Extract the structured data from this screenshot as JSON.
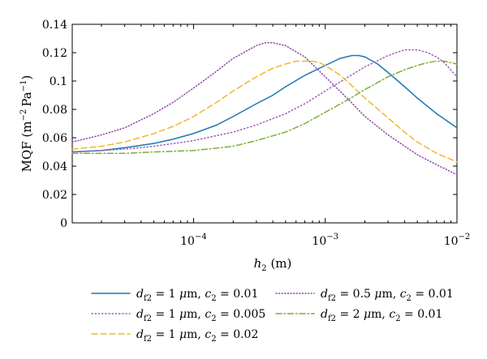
{
  "chart_data": {
    "type": "line",
    "title": "",
    "xlabel": "h2 (m)",
    "ylabel": "MQF (m−2 Pa−1)",
    "xscale": "log",
    "xlim": [
      1.2e-05,
      0.01
    ],
    "ylim": [
      0,
      0.14
    ],
    "grid": false,
    "legend_position": "bottom",
    "x_ticks": [
      {
        "value": 0.0001,
        "base": "10",
        "exp": "−4"
      },
      {
        "value": 0.001,
        "base": "10",
        "exp": "−3"
      },
      {
        "value": 0.01,
        "base": "10",
        "exp": "−2"
      }
    ],
    "y_ticks": [
      {
        "value": 0,
        "label": "0"
      },
      {
        "value": 0.02,
        "label": "0.02"
      },
      {
        "value": 0.04,
        "label": "0.04"
      },
      {
        "value": 0.06,
        "label": "0.06"
      },
      {
        "value": 0.08,
        "label": "0.08"
      },
      {
        "value": 0.1,
        "label": "0.1"
      },
      {
        "value": 0.12,
        "label": "0.12"
      },
      {
        "value": 0.14,
        "label": "0.14"
      }
    ],
    "series": [
      {
        "name": "d f2 = 1 μm, c2 = 0.01",
        "color": "#1f77b4",
        "dash": "solid",
        "x": [
          1.2e-05,
          2e-05,
          3e-05,
          5e-05,
          7e-05,
          0.0001,
          0.00015,
          0.0002,
          0.0003,
          0.0004,
          0.0005,
          0.0007,
          0.001,
          0.0013,
          0.0016,
          0.0018,
          0.002,
          0.0025,
          0.003,
          0.004,
          0.005,
          0.007,
          0.01
        ],
        "y": [
          0.05,
          0.051,
          0.053,
          0.056,
          0.059,
          0.063,
          0.069,
          0.075,
          0.084,
          0.09,
          0.096,
          0.104,
          0.111,
          0.116,
          0.118,
          0.118,
          0.117,
          0.112,
          0.106,
          0.096,
          0.088,
          0.077,
          0.067
        ]
      },
      {
        "name": "d f2 = 1 μm, c2 = 0.005",
        "color": "#9b59b6",
        "dash": "dotted",
        "x": [
          1.2e-05,
          2e-05,
          3e-05,
          5e-05,
          0.0001,
          0.0002,
          0.0003,
          0.0005,
          0.0007,
          0.001,
          0.0015,
          0.002,
          0.003,
          0.004,
          0.005,
          0.006,
          0.007,
          0.008,
          0.01
        ],
        "y": [
          0.05,
          0.051,
          0.052,
          0.054,
          0.058,
          0.064,
          0.069,
          0.077,
          0.084,
          0.093,
          0.103,
          0.11,
          0.118,
          0.122,
          0.122,
          0.12,
          0.117,
          0.113,
          0.103
        ]
      },
      {
        "name": "d f2 = 1 μm, c2 = 0.02",
        "color": "#f0b82e",
        "dash": "dashed",
        "x": [
          1.2e-05,
          2e-05,
          3e-05,
          5e-05,
          7e-05,
          0.0001,
          0.00015,
          0.0002,
          0.0003,
          0.0004,
          0.0005,
          0.0006,
          0.0007,
          0.0008,
          0.0009,
          0.001,
          0.0013,
          0.0015,
          0.002,
          0.003,
          0.004,
          0.005,
          0.007,
          0.01
        ],
        "y": [
          0.052,
          0.054,
          0.057,
          0.063,
          0.068,
          0.075,
          0.085,
          0.093,
          0.103,
          0.109,
          0.112,
          0.114,
          0.114,
          0.114,
          0.113,
          0.111,
          0.104,
          0.099,
          0.088,
          0.074,
          0.064,
          0.057,
          0.049,
          0.043
        ]
      },
      {
        "name": "d f2 = 0.5 μm, c2 = 0.01",
        "color": "#8e44ad",
        "dash": "dotted-fine",
        "x": [
          1.2e-05,
          2e-05,
          3e-05,
          5e-05,
          7e-05,
          0.0001,
          0.00015,
          0.0002,
          0.0003,
          0.00035,
          0.0004,
          0.0005,
          0.0007,
          0.001,
          0.0015,
          0.002,
          0.003,
          0.005,
          0.007,
          0.01
        ],
        "y": [
          0.057,
          0.062,
          0.067,
          0.077,
          0.085,
          0.095,
          0.107,
          0.116,
          0.125,
          0.127,
          0.127,
          0.125,
          0.117,
          0.103,
          0.087,
          0.075,
          0.062,
          0.048,
          0.041,
          0.034
        ]
      },
      {
        "name": "d f2 = 2 μm, c2 = 0.01",
        "color": "#7cae3c",
        "dash": "dashdot",
        "x": [
          1.2e-05,
          2e-05,
          3e-05,
          5e-05,
          0.0001,
          0.0002,
          0.0003,
          0.0005,
          0.0007,
          0.001,
          0.0015,
          0.002,
          0.003,
          0.004,
          0.005,
          0.006,
          0.007,
          0.008,
          0.01
        ],
        "y": [
          0.049,
          0.049,
          0.049,
          0.05,
          0.051,
          0.054,
          0.058,
          0.064,
          0.07,
          0.078,
          0.087,
          0.094,
          0.103,
          0.108,
          0.111,
          0.113,
          0.114,
          0.114,
          0.112
        ]
      }
    ]
  },
  "legend": [
    {
      "series": 0,
      "sym": "d",
      "sub": "f2",
      "mid": " = 1 ",
      "mu": "μ",
      "rest": "m, ",
      "c": "c",
      "csub": "2",
      "val": " = 0.01"
    },
    {
      "series": 3,
      "sym": "d",
      "sub": "f2",
      "mid": " = 0.5 ",
      "mu": "μ",
      "rest": "m, ",
      "c": "c",
      "csub": "2",
      "val": " = 0.01"
    },
    {
      "series": 1,
      "sym": "d",
      "sub": "f2",
      "mid": " = 1 ",
      "mu": "μ",
      "rest": "m, ",
      "c": "c",
      "csub": "2",
      "val": " = 0.005"
    },
    {
      "series": 4,
      "sym": "d",
      "sub": "f2",
      "mid": " = 2 ",
      "mu": "μ",
      "rest": "m, ",
      "c": "c",
      "csub": "2",
      "val": " = 0.01"
    },
    {
      "series": 2,
      "sym": "d",
      "sub": "f2",
      "mid": " = 1 ",
      "mu": "μ",
      "rest": "m, ",
      "c": "c",
      "csub": "2",
      "val": " = 0.02"
    }
  ],
  "axis_labels": {
    "y_main": "MQF (m",
    "y_exp1": "−2",
    "y_mid": "Pa",
    "y_exp2": "−1",
    "y_close": ")",
    "x_sym": "h",
    "x_sub": "2",
    "x_unit": " (m)"
  }
}
